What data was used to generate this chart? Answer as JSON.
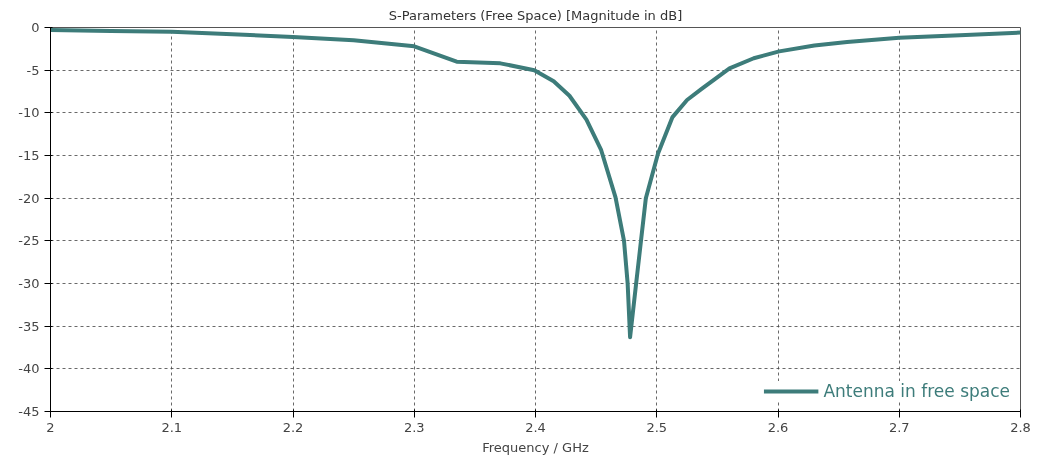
{
  "chart_data": {
    "type": "line",
    "title": "S-Parameters (Free Space) [Magnitude in dB]",
    "xlabel": "Frequency / GHz",
    "x": [
      2.0,
      2.05,
      2.1,
      2.15,
      2.2,
      2.25,
      2.3,
      2.335,
      2.371,
      2.399,
      2.415,
      2.428,
      2.442,
      2.454,
      2.466,
      2.473,
      2.476,
      2.478,
      2.483,
      2.487,
      2.491,
      2.501,
      2.513,
      2.525,
      2.537,
      2.56,
      2.58,
      2.601,
      2.63,
      2.657,
      2.7,
      2.75,
      2.8
    ],
    "series": [
      {
        "name": "Antenna in free space",
        "color": "#3d7c7a",
        "values": [
          -0.3,
          -0.4,
          -0.5,
          -0.8,
          -1.1,
          -1.5,
          -2.2,
          -4.0,
          -4.2,
          -5.0,
          -6.3,
          -8.0,
          -10.8,
          -14.3,
          -19.9,
          -25,
          -30,
          -36.3,
          -30,
          -25,
          -20,
          -14.8,
          -10.5,
          -8.5,
          -7.2,
          -4.8,
          -3.6,
          -2.8,
          -2.1,
          -1.7,
          -1.2,
          -0.9,
          -0.6
        ]
      }
    ],
    "xlim": [
      2,
      2.8
    ],
    "xticks": [
      2,
      2.1,
      2.2,
      2.3,
      2.4,
      2.5,
      2.6,
      2.7,
      2.8
    ],
    "ylim": [
      -45,
      0
    ],
    "yticks": [
      -45,
      -40,
      -35,
      -30,
      -25,
      -20,
      -15,
      -10,
      -5,
      0
    ],
    "grid": true,
    "legend": "bottom right",
    "line_style": "solid",
    "marker": "none"
  }
}
